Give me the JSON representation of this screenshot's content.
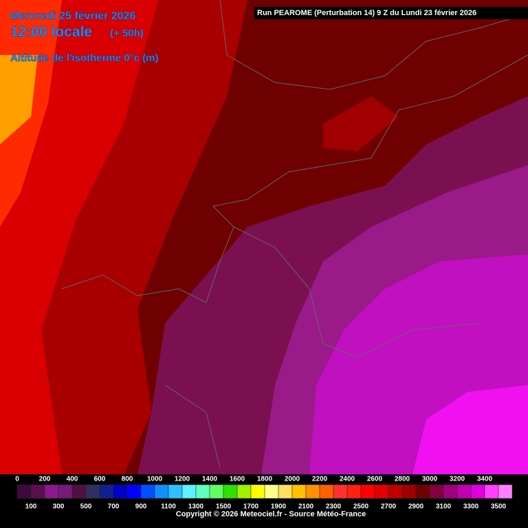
{
  "header": {
    "date": "Mercredi 25 février 2026",
    "time": "12:00 locale",
    "lead": "(+ 50h)",
    "parameter": "Altitude de l'isotherme 0°c (m)",
    "run": "Run PEAROME (Perturbation 14) 9 Z du Lundi 23 février 2026"
  },
  "legend": {
    "top_labels": [
      0,
      200,
      400,
      600,
      800,
      1000,
      1200,
      1400,
      1600,
      1800,
      2000,
      2200,
      2400,
      2600,
      2800,
      3000,
      3200,
      3400
    ],
    "bottom_labels": [
      100,
      300,
      500,
      700,
      900,
      1100,
      1300,
      1500,
      1700,
      1900,
      2100,
      2300,
      2500,
      2700,
      2900,
      3100,
      3300,
      3500
    ],
    "colors": [
      "#3c0a3c",
      "#5a1050",
      "#8c1a8c",
      "#781a78",
      "#501040",
      "#303060",
      "#102090",
      "#0000c8",
      "#0000ff",
      "#0050ff",
      "#1090ff",
      "#30c0ff",
      "#60f0ff",
      "#60ffc0",
      "#60ff60",
      "#30e000",
      "#a0f000",
      "#ffff00",
      "#ffff90",
      "#ffe060",
      "#ffc000",
      "#ff9000",
      "#ff6000",
      "#ff3030",
      "#ff2010",
      "#ff0000",
      "#e00000",
      "#c00000",
      "#a00000",
      "#700000",
      "#800040",
      "#a00080",
      "#c000b0",
      "#e000e0",
      "#ff40ff",
      "#ff80ff"
    ]
  },
  "footer": {
    "copyright": "Copyright © 2026 Meteociel.fr - Source Météo-France"
  }
}
